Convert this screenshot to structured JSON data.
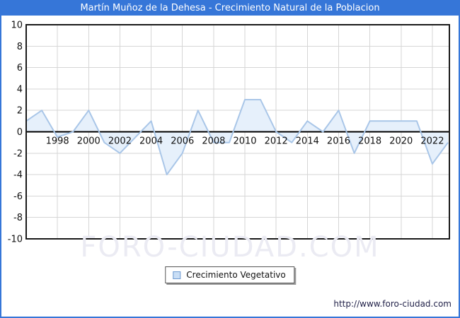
{
  "window": {
    "title": "Martín Muñoz de la Dehesa - Crecimiento Natural de la Poblacion",
    "title_bar_color": "#3676d8"
  },
  "legend": {
    "label": "Crecimiento Vegetativo",
    "marker_fill": "#c9def5",
    "marker_border": "#6f9bd1"
  },
  "watermark": "FORO-CIUDAD.COM",
  "footer": {
    "url": "http://www.foro-ciudad.com"
  },
  "chart_data": {
    "type": "area",
    "title": "Martín Muñoz de la Dehesa - Crecimiento Natural de la Poblacion",
    "series_name": "Crecimiento Vegetativo",
    "x": [
      1996,
      1997,
      1998,
      1999,
      2000,
      2001,
      2002,
      2003,
      2004,
      2005,
      2006,
      2007,
      2008,
      2009,
      2010,
      2011,
      2012,
      2013,
      2014,
      2015,
      2016,
      2017,
      2018,
      2019,
      2020,
      2021,
      2022,
      2023
    ],
    "values": [
      1,
      2,
      -0.5,
      0,
      2,
      -1,
      -2,
      -0.5,
      1,
      -4,
      -2,
      2,
      -1,
      -1,
      3,
      3,
      0,
      -1,
      1,
      0,
      2,
      -2,
      1,
      1,
      1,
      1,
      -3,
      -1
    ],
    "ylim": [
      -10,
      10
    ],
    "yticks": [
      10,
      8,
      6,
      4,
      2,
      0,
      -2,
      -4,
      -6,
      -8,
      -10
    ],
    "xticks": [
      1998,
      2000,
      2002,
      2004,
      2006,
      2008,
      2010,
      2012,
      2014,
      2016,
      2018,
      2020,
      2022
    ],
    "xlabel": "",
    "ylabel": "",
    "grid": true,
    "zero_line": true,
    "legend_position": "bottom",
    "line_color": "#a9c6e8",
    "fill_color": "#e6f0fb",
    "grid_color": "#d6d6d6",
    "border_color": "#1a1a1a",
    "tick_color": "#111111"
  }
}
